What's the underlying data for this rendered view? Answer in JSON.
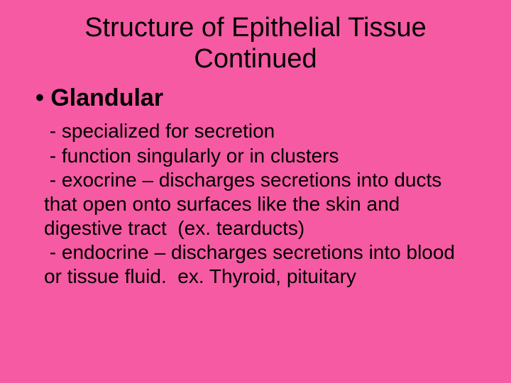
{
  "slide": {
    "background_color": "#f55aa2",
    "text_color": "#000000",
    "font_family": "Comic Sans MS",
    "title": {
      "text": "Structure of Epithelial Tissue Continued",
      "fontsize": 38,
      "align": "center",
      "weight": 400
    },
    "subhead": {
      "bullet": "•",
      "text": "Glandular",
      "fontsize": 34,
      "weight": 700
    },
    "body": {
      "fontsize": 28,
      "lines": [
        " - specialized for secretion",
        " - function singularly or in clusters",
        " - exocrine – discharges secretions into ducts that open onto surfaces like the skin and digestive tract  (ex. tearducts)",
        " - endocrine – discharges secretions into blood or tissue fluid.  ex. Thyroid, pituitary"
      ]
    }
  }
}
